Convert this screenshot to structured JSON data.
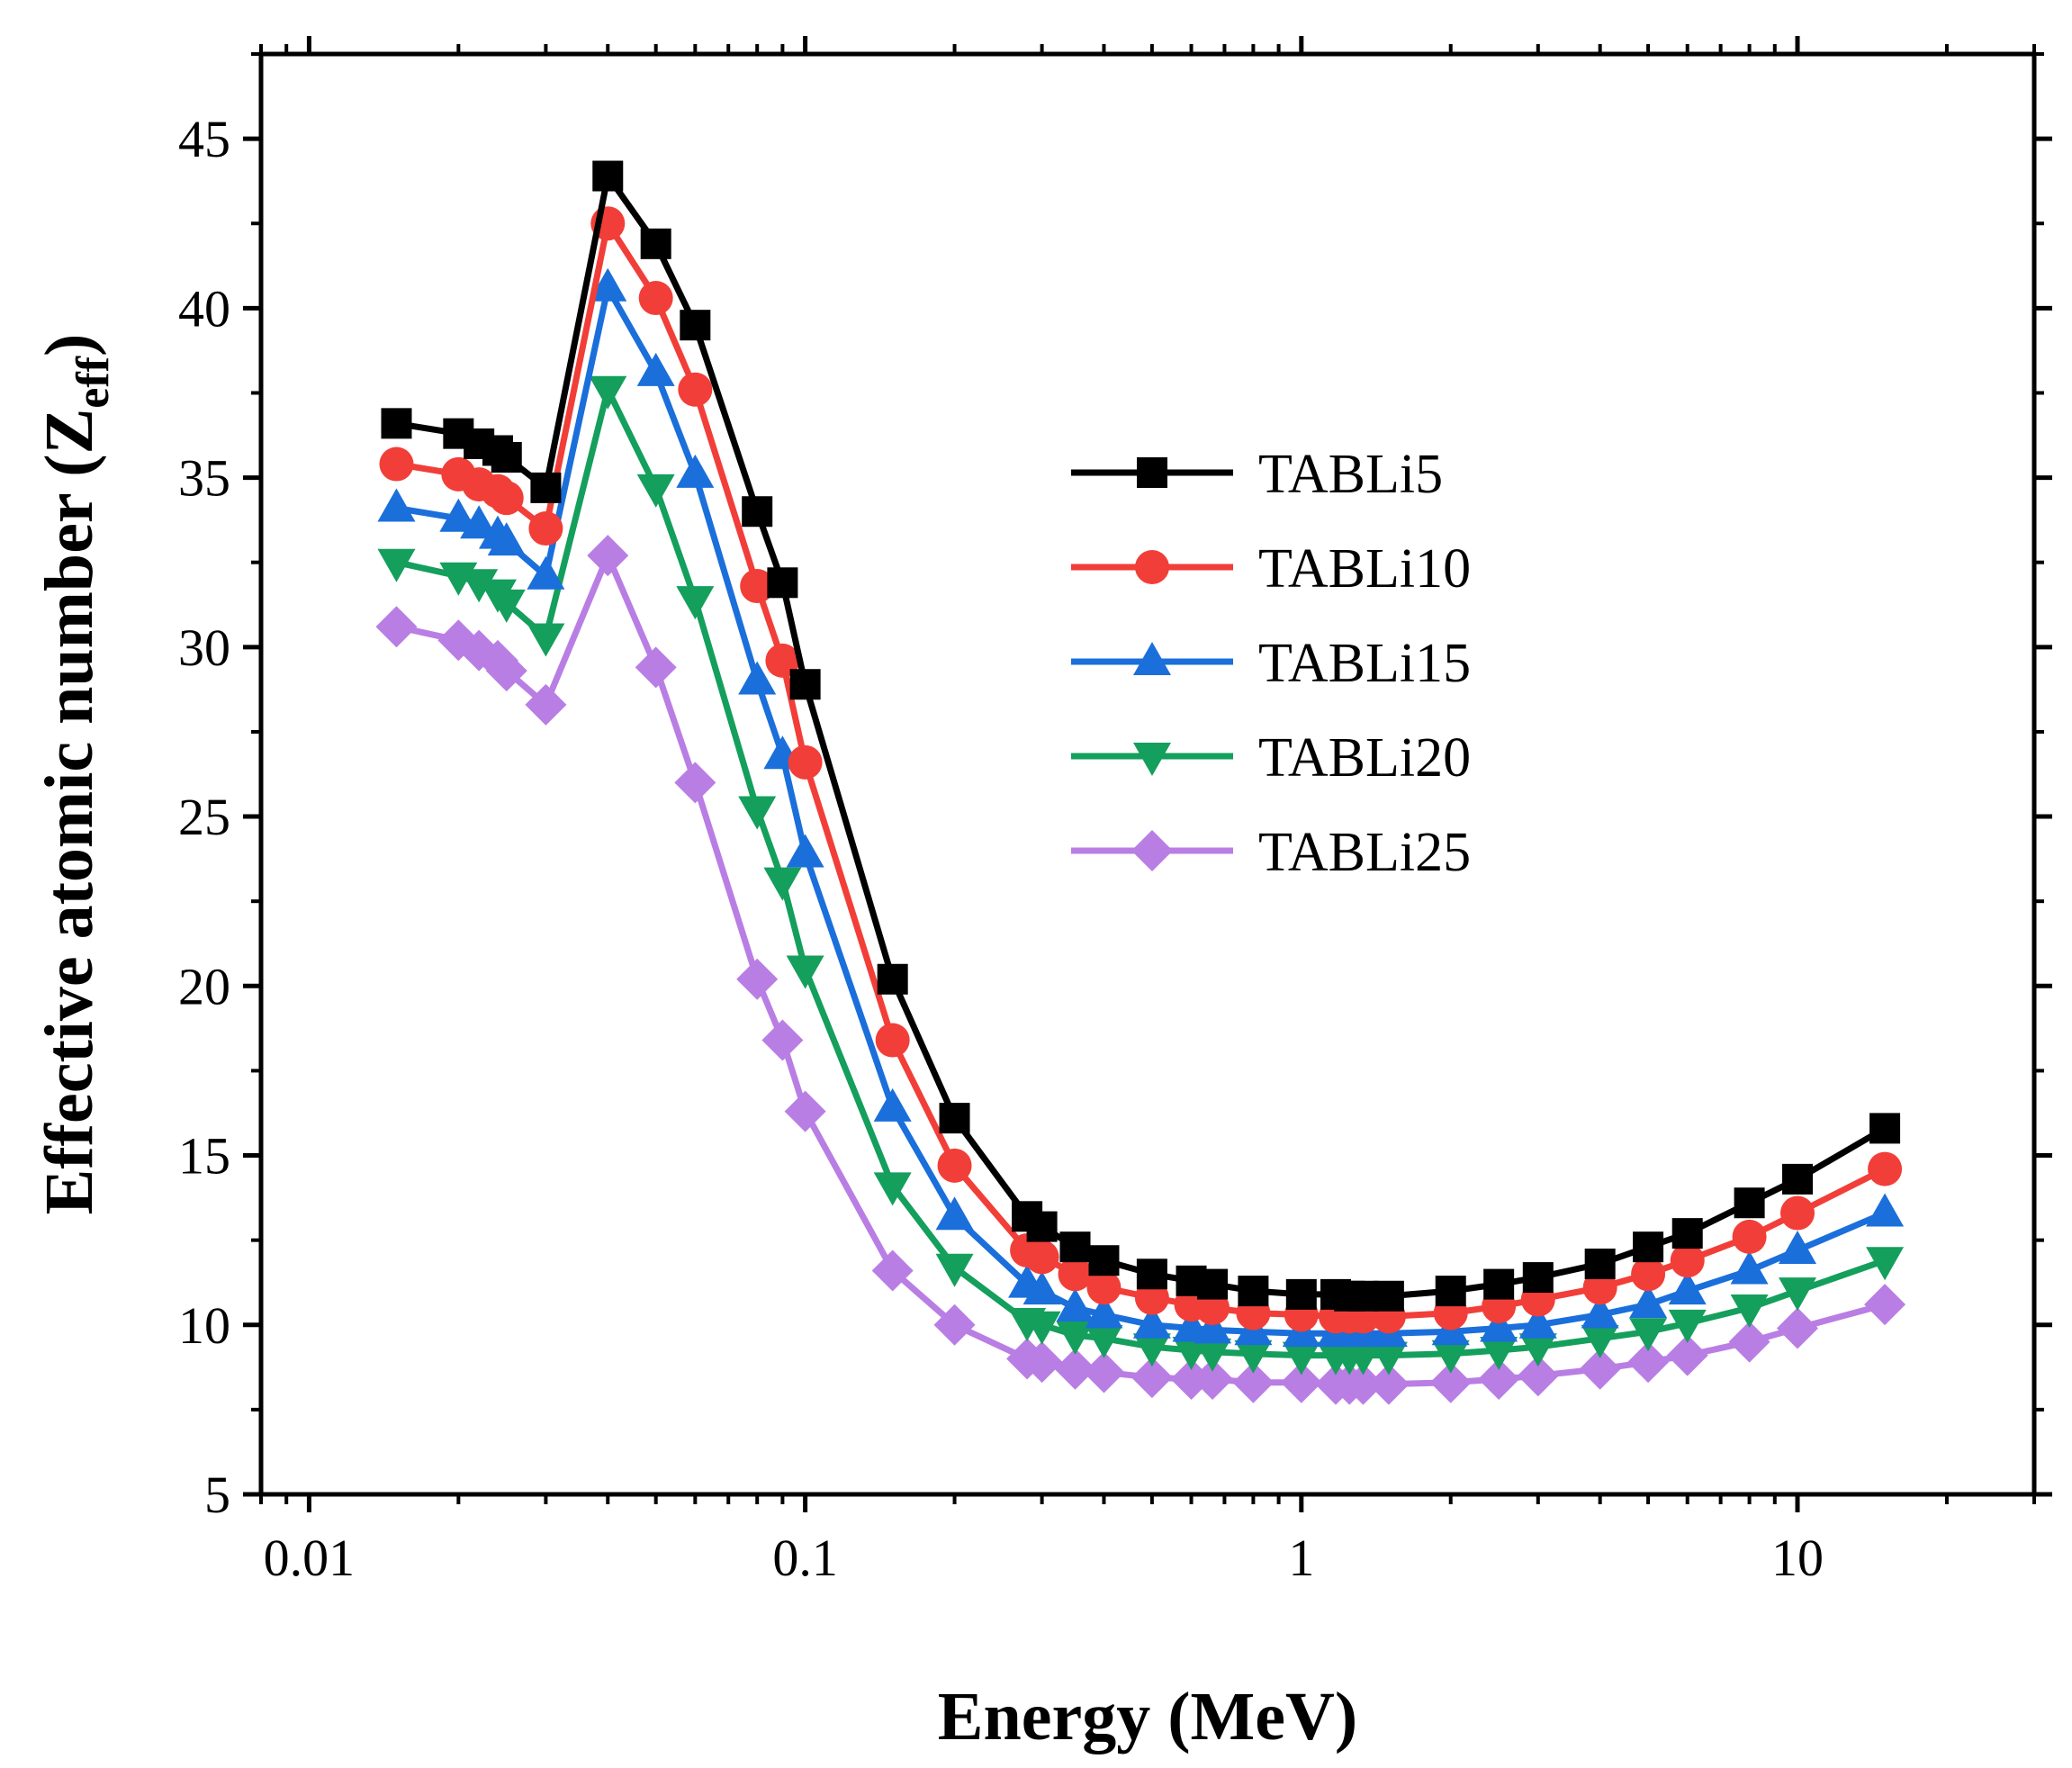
{
  "chart_data": {
    "type": "line",
    "xscale": "log",
    "xlabel": "Energy (MeV)",
    "ylabel_main": "Effective atomic number (Z",
    "ylabel_sub": "eff",
    "ylabel_close": ")",
    "xlim": [
      0.008,
      30
    ],
    "ylim": [
      5,
      47.5
    ],
    "x_ticks": [
      {
        "value": 0.01,
        "label": "0.01"
      },
      {
        "value": 0.1,
        "label": "0.1"
      },
      {
        "value": 1,
        "label": "1"
      },
      {
        "value": 10,
        "label": "10"
      }
    ],
    "y_ticks": [
      {
        "value": 5,
        "label": "5"
      },
      {
        "value": 10,
        "label": "10"
      },
      {
        "value": 15,
        "label": "15"
      },
      {
        "value": 20,
        "label": "20"
      },
      {
        "value": 25,
        "label": "25"
      },
      {
        "value": 30,
        "label": "30"
      },
      {
        "value": 35,
        "label": "35"
      },
      {
        "value": 40,
        "label": "40"
      },
      {
        "value": 45,
        "label": "45"
      }
    ],
    "legend_position": "upper-right",
    "x": [
      0.015,
      0.02,
      0.022,
      0.024,
      0.025,
      0.03,
      0.04,
      0.05,
      0.06,
      0.08,
      0.09,
      0.1,
      0.15,
      0.2,
      0.28,
      0.3,
      0.35,
      0.4,
      0.5,
      0.6,
      0.662,
      0.8,
      1.0,
      1.173,
      1.25,
      1.332,
      1.5,
      2.0,
      2.5,
      3.0,
      4.0,
      5.0,
      6.0,
      8.0,
      10.0,
      15.0
    ],
    "series": [
      {
        "name": "TABLi5",
        "color": "#000000",
        "marker": "square",
        "values": [
          36.6,
          36.3,
          36.0,
          35.8,
          35.6,
          34.7,
          43.9,
          41.9,
          39.5,
          34.0,
          31.9,
          28.9,
          20.2,
          16.1,
          13.2,
          12.9,
          12.3,
          11.9,
          11.5,
          11.3,
          11.2,
          11.0,
          10.9,
          10.9,
          10.85,
          10.85,
          10.85,
          11.0,
          11.2,
          11.4,
          11.8,
          12.3,
          12.7,
          13.6,
          14.3,
          15.8
        ]
      },
      {
        "name": "TABLi10",
        "color": "#f23e38",
        "marker": "circle",
        "values": [
          35.4,
          35.1,
          34.8,
          34.6,
          34.4,
          33.5,
          42.5,
          40.3,
          37.6,
          31.8,
          29.6,
          26.6,
          18.4,
          14.7,
          12.2,
          12.0,
          11.5,
          11.1,
          10.8,
          10.6,
          10.5,
          10.35,
          10.3,
          10.25,
          10.25,
          10.25,
          10.25,
          10.35,
          10.55,
          10.75,
          11.1,
          11.5,
          11.9,
          12.6,
          13.3,
          14.6
        ]
      },
      {
        "name": "TABLi15",
        "color": "#1a6fdb",
        "marker": "triangle-up",
        "values": [
          34.1,
          33.8,
          33.6,
          33.3,
          33.1,
          32.1,
          40.6,
          38.1,
          35.1,
          29.0,
          26.8,
          23.9,
          16.4,
          13.2,
          11.2,
          11.0,
          10.5,
          10.3,
          10.0,
          9.9,
          9.85,
          9.8,
          9.75,
          9.75,
          9.75,
          9.75,
          9.75,
          9.8,
          9.9,
          10.0,
          10.3,
          10.6,
          11.0,
          11.6,
          12.2,
          13.3
        ]
      },
      {
        "name": "TABLi20",
        "color": "#149f5c",
        "marker": "triangle-down",
        "values": [
          32.5,
          32.1,
          31.9,
          31.6,
          31.3,
          30.3,
          37.6,
          34.7,
          31.4,
          25.2,
          23.1,
          20.5,
          14.1,
          11.7,
          10.1,
          10.0,
          9.7,
          9.6,
          9.35,
          9.25,
          9.2,
          9.15,
          9.1,
          9.1,
          9.1,
          9.1,
          9.1,
          9.15,
          9.25,
          9.35,
          9.6,
          9.8,
          10.05,
          10.5,
          11.0,
          11.9
        ]
      },
      {
        "name": "TABLi25",
        "color": "#b97ee4",
        "marker": "diamond",
        "values": [
          30.6,
          30.2,
          29.9,
          29.6,
          29.3,
          28.3,
          32.7,
          29.4,
          26.0,
          20.2,
          18.4,
          16.3,
          11.6,
          10.0,
          9.0,
          8.9,
          8.7,
          8.6,
          8.45,
          8.4,
          8.4,
          8.3,
          8.3,
          8.25,
          8.25,
          8.25,
          8.25,
          8.3,
          8.4,
          8.5,
          8.7,
          8.9,
          9.1,
          9.5,
          9.9,
          10.6
        ]
      }
    ]
  }
}
